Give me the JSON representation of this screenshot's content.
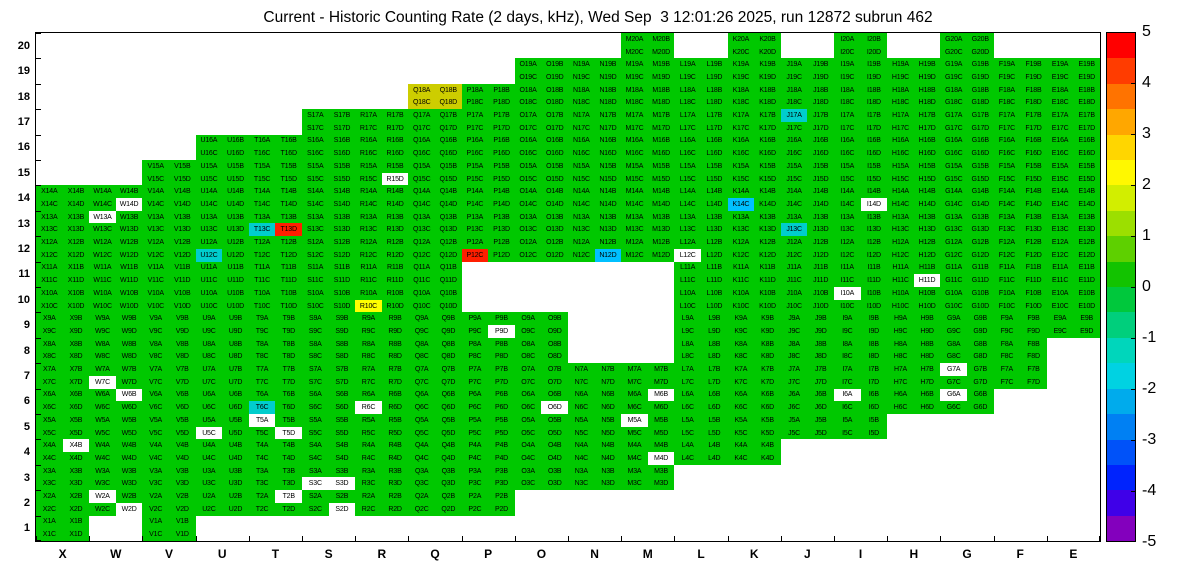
{
  "title": "Current - Historic Counting Rate (2 days, kHz), Wed Sep  3 12:01:26 2025, run 12872 subrun 462",
  "chart_data": {
    "type": "heatmap",
    "title": "Current - Historic Counting Rate (2 days, kHz), Wed Sep  3 12:01:26 2025, run 12872 subrun 462",
    "run": "12872",
    "subrun": "462",
    "timestamp": "Wed Sep  3 12:01:26 2025",
    "units": "kHz",
    "columns": [
      "X",
      "W",
      "V",
      "U",
      "T",
      "S",
      "R",
      "Q",
      "P",
      "O",
      "N",
      "M",
      "L",
      "K",
      "J",
      "I",
      "H",
      "G",
      "F",
      "E"
    ],
    "y_tick_labels": [
      "20",
      "19",
      "18",
      "17",
      "16",
      "15",
      "14",
      "13",
      "12",
      "11",
      "10",
      "9",
      "8",
      "7",
      "6",
      "5",
      "4",
      "3",
      "2",
      "1"
    ],
    "cell_suffixes": [
      "A",
      "B",
      "C",
      "D"
    ],
    "cell_label_format": "{column}{row}{suffix}",
    "value_range": [
      -5,
      5
    ],
    "default_value": 0,
    "default_color": "#00c800",
    "no_data_color": "#ffffff",
    "rows": [
      {
        "row": 20,
        "columns": [
          "M",
          "K",
          "I",
          "G"
        ]
      },
      {
        "row": 19,
        "columns": [
          "O",
          "N",
          "M",
          "L",
          "K",
          "J",
          "I",
          "H",
          "G",
          "F",
          "E"
        ]
      },
      {
        "row": 18,
        "columns": [
          "Q",
          "P",
          "O",
          "N",
          "M",
          "L",
          "K",
          "J",
          "I",
          "H",
          "G",
          "F",
          "E"
        ]
      },
      {
        "row": 17,
        "columns": [
          "S",
          "R",
          "Q",
          "P",
          "O",
          "N",
          "M",
          "L",
          "K",
          "J",
          "I",
          "H",
          "G",
          "F",
          "E"
        ]
      },
      {
        "row": 16,
        "columns": [
          "U",
          "T",
          "S",
          "R",
          "Q",
          "P",
          "O",
          "N",
          "M",
          "L",
          "K",
          "J",
          "I",
          "H",
          "G",
          "F",
          "E"
        ]
      },
      {
        "row": 15,
        "columns": [
          "V",
          "U",
          "T",
          "S",
          "R",
          "Q",
          "P",
          "O",
          "N",
          "M",
          "L",
          "K",
          "J",
          "I",
          "H",
          "G",
          "F",
          "E"
        ]
      },
      {
        "row": 14,
        "columns": [
          "X",
          "W",
          "V",
          "U",
          "T",
          "S",
          "R",
          "Q",
          "P",
          "O",
          "N",
          "M",
          "L",
          "K",
          "J",
          "I",
          "H",
          "G",
          "F",
          "E"
        ]
      },
      {
        "row": 13,
        "columns": [
          "X",
          "W",
          "V",
          "U",
          "T",
          "S",
          "R",
          "Q",
          "P",
          "O",
          "N",
          "M",
          "L",
          "K",
          "J",
          "I",
          "H",
          "G",
          "F",
          "E"
        ]
      },
      {
        "row": 12,
        "columns": [
          "X",
          "W",
          "V",
          "U",
          "T",
          "S",
          "R",
          "Q",
          "P",
          "O",
          "N",
          "M",
          "L",
          "K",
          "J",
          "I",
          "H",
          "G",
          "F",
          "E"
        ]
      },
      {
        "row": 11,
        "columns": [
          "X",
          "W",
          "V",
          "U",
          "T",
          "S",
          "R",
          "Q",
          "L",
          "K",
          "J",
          "I",
          "H",
          "G",
          "F",
          "E"
        ]
      },
      {
        "row": 10,
        "columns": [
          "X",
          "W",
          "V",
          "U",
          "T",
          "S",
          "R",
          "Q",
          "L",
          "K",
          "J",
          "I",
          "H",
          "G",
          "F",
          "E"
        ]
      },
      {
        "row": 9,
        "columns": [
          "X",
          "W",
          "V",
          "U",
          "T",
          "S",
          "R",
          "Q",
          "P",
          "O",
          "L",
          "K",
          "J",
          "I",
          "H",
          "G",
          "F",
          "E"
        ]
      },
      {
        "row": 8,
        "columns": [
          "X",
          "W",
          "V",
          "U",
          "T",
          "S",
          "R",
          "Q",
          "P",
          "O",
          "L",
          "K",
          "J",
          "I",
          "H",
          "G",
          "F"
        ]
      },
      {
        "row": 7,
        "columns": [
          "X",
          "W",
          "V",
          "U",
          "T",
          "S",
          "R",
          "Q",
          "P",
          "O",
          "N",
          "M",
          "L",
          "K",
          "J",
          "I",
          "H",
          "G",
          "F"
        ]
      },
      {
        "row": 6,
        "columns": [
          "X",
          "W",
          "V",
          "U",
          "T",
          "S",
          "R",
          "Q",
          "P",
          "O",
          "N",
          "M",
          "L",
          "K",
          "J",
          "I",
          "H",
          "G"
        ]
      },
      {
        "row": 5,
        "columns": [
          "X",
          "W",
          "V",
          "U",
          "T",
          "S",
          "R",
          "Q",
          "P",
          "O",
          "N",
          "M",
          "L",
          "K",
          "J",
          "I"
        ]
      },
      {
        "row": 4,
        "columns": [
          "X",
          "W",
          "V",
          "U",
          "T",
          "S",
          "R",
          "Q",
          "P",
          "O",
          "N",
          "M",
          "L",
          "K"
        ]
      },
      {
        "row": 3,
        "columns": [
          "X",
          "W",
          "V",
          "U",
          "T",
          "S",
          "R",
          "Q",
          "P",
          "O",
          "N",
          "M"
        ]
      },
      {
        "row": 2,
        "columns": [
          "X",
          "W",
          "V",
          "U",
          "T",
          "S",
          "R",
          "Q",
          "P"
        ]
      },
      {
        "row": 1,
        "columns": [
          "X",
          "V"
        ]
      }
    ],
    "special_cells": [
      {
        "cell": "Q18A",
        "color": "#cdcd00",
        "approx_value": 2
      },
      {
        "cell": "Q18B",
        "color": "#cdcd00",
        "approx_value": 2
      },
      {
        "cell": "Q18C",
        "color": "#cdcd00",
        "approx_value": 2
      },
      {
        "cell": "Q18D",
        "color": "#cdcd00",
        "approx_value": 2
      },
      {
        "cell": "J17A",
        "color": "#00cdcd",
        "approx_value": -2
      },
      {
        "cell": "R15D",
        "color": "#ffffff",
        "approx_value": null
      },
      {
        "cell": "K14C",
        "color": "#00c0ff",
        "approx_value": -2.5
      },
      {
        "cell": "W14D",
        "color": "#ffffff",
        "approx_value": null
      },
      {
        "cell": "I14D",
        "color": "#ffffff",
        "approx_value": null
      },
      {
        "cell": "W13A",
        "color": "#ffffff",
        "approx_value": null
      },
      {
        "cell": "T13C",
        "color": "#00cdcd",
        "approx_value": -2
      },
      {
        "cell": "T13D",
        "color": "#ff1e00",
        "approx_value": 5
      },
      {
        "cell": "J13C",
        "color": "#00cdcd",
        "approx_value": -2
      },
      {
        "cell": "U12C",
        "color": "#00cdcd",
        "approx_value": -2
      },
      {
        "cell": "P12C",
        "color": "#ff1e00",
        "approx_value": 5
      },
      {
        "cell": "N12D",
        "color": "#00c0ff",
        "approx_value": -2.5
      },
      {
        "cell": "L12C",
        "color": "#ffffff",
        "approx_value": null
      },
      {
        "cell": "H11D",
        "color": "#ffffff",
        "approx_value": null
      },
      {
        "cell": "R10C",
        "color": "#ffff00",
        "approx_value": 2.5
      },
      {
        "cell": "I10A",
        "color": "#ffffff",
        "approx_value": null
      },
      {
        "cell": "P9D",
        "color": "#ffffff",
        "approx_value": null
      },
      {
        "cell": "W7C",
        "color": "#ffffff",
        "approx_value": null
      },
      {
        "cell": "G7A",
        "color": "#ffffff",
        "approx_value": null
      },
      {
        "cell": "W6B",
        "color": "#ffffff",
        "approx_value": null
      },
      {
        "cell": "T6C",
        "color": "#00cdcd",
        "approx_value": -2
      },
      {
        "cell": "R6C",
        "color": "#ffffff",
        "approx_value": null
      },
      {
        "cell": "O6D",
        "color": "#ffffff",
        "approx_value": null
      },
      {
        "cell": "M6B",
        "color": "#ffffff",
        "approx_value": null
      },
      {
        "cell": "I6A",
        "color": "#ffffff",
        "approx_value": null
      },
      {
        "cell": "G6A",
        "color": "#ffffff",
        "approx_value": null
      },
      {
        "cell": "T5A",
        "color": "#ffffff",
        "approx_value": null
      },
      {
        "cell": "U5C",
        "color": "#ffffff",
        "approx_value": null
      },
      {
        "cell": "T5D",
        "color": "#ffffff",
        "approx_value": null
      },
      {
        "cell": "M5A",
        "color": "#ffffff",
        "approx_value": null
      },
      {
        "cell": "X4B",
        "color": "#ffffff",
        "approx_value": null
      },
      {
        "cell": "M4D",
        "color": "#ffffff",
        "approx_value": null
      },
      {
        "cell": "S3C",
        "color": "#ffffff",
        "approx_value": null
      },
      {
        "cell": "S3D",
        "color": "#ffffff",
        "approx_value": null
      },
      {
        "cell": "W2A",
        "color": "#ffffff",
        "approx_value": null
      },
      {
        "cell": "W2D",
        "color": "#ffffff",
        "approx_value": null
      },
      {
        "cell": "T2B",
        "color": "#ffffff",
        "approx_value": null
      },
      {
        "cell": "S2D",
        "color": "#ffffff",
        "approx_value": null
      }
    ],
    "colorbar": {
      "position": "right",
      "tick_labels": [
        "5",
        "4",
        "3",
        "2",
        "1",
        "0",
        "-1",
        "-2",
        "-3",
        "-4",
        "-5"
      ],
      "segment_colors_top_to_bottom": [
        "#ff0000",
        "#ff3c00",
        "#ff7300",
        "#ffa700",
        "#ffd600",
        "#fff800",
        "#d2ee00",
        "#9cdf00",
        "#5ed000",
        "#12c300",
        "#00c83c",
        "#00cf7c",
        "#00d6bb",
        "#00d2e2",
        "#00abec",
        "#0080f3",
        "#0052f9",
        "#0023fd",
        "#3f00e8",
        "#8300bd"
      ]
    }
  }
}
